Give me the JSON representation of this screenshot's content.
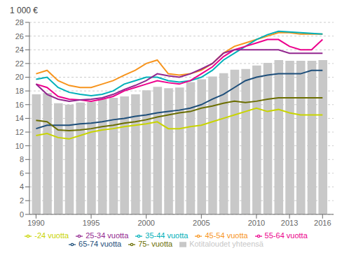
{
  "chart_data": {
    "type": "bar",
    "ylabel": "1 000 €",
    "x": [
      1990,
      1991,
      1992,
      1993,
      1994,
      1995,
      1996,
      1997,
      1998,
      1999,
      2000,
      2001,
      2002,
      2003,
      2004,
      2005,
      2006,
      2007,
      2008,
      2009,
      2010,
      2011,
      2012,
      2013,
      2014,
      2015,
      2016
    ],
    "xlim": [
      1989.4,
      2017.0
    ],
    "xticks": [
      1990,
      1995,
      2000,
      2005,
      2010,
      2013,
      2016
    ],
    "ylim": [
      0,
      28
    ],
    "yticks": [
      0,
      2,
      4,
      6,
      8,
      10,
      12,
      14,
      16,
      18,
      20,
      22,
      24,
      26,
      28
    ],
    "grid": "y",
    "legend": "bottom",
    "series": [
      {
        "name": "Kotitaloudet yhteensä",
        "type": "bar",
        "color": "#C8C8C8",
        "values": [
          17.5,
          17.7,
          16.2,
          16.0,
          16.3,
          16.4,
          16.8,
          17.0,
          17.2,
          17.5,
          18.1,
          18.6,
          18.4,
          18.5,
          19.3,
          19.7,
          20.1,
          20.6,
          21.1,
          21.2,
          21.7,
          22.1,
          22.5,
          22.4,
          22.4,
          22.4,
          22.5
        ]
      },
      {
        "name": "45-54 vuotta",
        "type": "line",
        "color": "#F7941D",
        "values": [
          20.5,
          21.0,
          19.5,
          18.8,
          18.5,
          18.5,
          19.0,
          19.5,
          20.3,
          21.0,
          22.0,
          22.5,
          20.5,
          20.3,
          20.5,
          21.0,
          22.0,
          23.5,
          24.5,
          25.0,
          25.5,
          26.0,
          26.5,
          26.5,
          26.3,
          26.3,
          26.3
        ]
      },
      {
        "name": "35-44 vuotta",
        "type": "line",
        "color": "#00B0B9",
        "values": [
          19.7,
          20.0,
          18.5,
          17.8,
          17.5,
          17.3,
          17.5,
          18.0,
          19.0,
          19.5,
          20.0,
          20.0,
          19.5,
          19.3,
          19.5,
          20.0,
          21.0,
          22.5,
          23.5,
          24.5,
          25.5,
          26.2,
          26.7,
          26.6,
          26.5,
          26.4,
          26.3
        ]
      },
      {
        "name": "55-64 vuotta",
        "type": "line",
        "color": "#EC008C",
        "values": [
          19.0,
          18.5,
          17.2,
          16.8,
          16.7,
          16.5,
          16.8,
          17.2,
          18.0,
          18.5,
          19.0,
          19.5,
          19.2,
          19.0,
          19.5,
          20.5,
          21.5,
          23.0,
          24.0,
          24.5,
          25.0,
          25.5,
          25.5,
          24.5,
          24.0,
          24.0,
          25.5
        ]
      },
      {
        "name": "25-34 vuotta",
        "type": "line",
        "color": "#92278F",
        "values": [
          19.0,
          17.5,
          16.8,
          16.5,
          16.7,
          16.8,
          17.0,
          17.5,
          18.2,
          18.8,
          19.5,
          20.5,
          20.2,
          20.0,
          20.5,
          21.2,
          22.0,
          23.5,
          24.0,
          24.0,
          24.0,
          24.0,
          24.0,
          23.5,
          23.5,
          23.5,
          23.5
        ]
      },
      {
        "name": "65-74 vuotta",
        "type": "line",
        "color": "#1D4E7A",
        "values": [
          12.5,
          13.0,
          13.0,
          13.0,
          13.2,
          13.3,
          13.5,
          13.8,
          14.0,
          14.3,
          14.5,
          14.8,
          15.0,
          15.2,
          15.5,
          16.0,
          16.8,
          17.5,
          18.5,
          19.5,
          20.0,
          20.3,
          20.5,
          20.5,
          20.5,
          21.0,
          21.0
        ]
      },
      {
        "name": "75- vuotta",
        "type": "line",
        "color": "#6B6E00",
        "values": [
          13.7,
          13.5,
          12.3,
          12.2,
          12.3,
          12.5,
          12.8,
          13.0,
          13.3,
          13.5,
          13.8,
          14.2,
          14.5,
          14.8,
          15.0,
          15.5,
          15.8,
          16.2,
          16.5,
          16.3,
          16.5,
          16.8,
          17.0,
          17.0,
          17.0,
          17.0,
          17.0
        ]
      },
      {
        "name": "-24 vuotta",
        "type": "line",
        "color": "#C8D400",
        "values": [
          11.5,
          11.8,
          11.2,
          11.0,
          11.5,
          12.0,
          12.3,
          12.5,
          12.8,
          13.0,
          13.2,
          13.5,
          12.5,
          12.5,
          12.8,
          13.0,
          13.5,
          14.0,
          14.5,
          15.0,
          15.5,
          15.0,
          15.3,
          14.8,
          14.5,
          14.5,
          14.5
        ]
      }
    ]
  }
}
